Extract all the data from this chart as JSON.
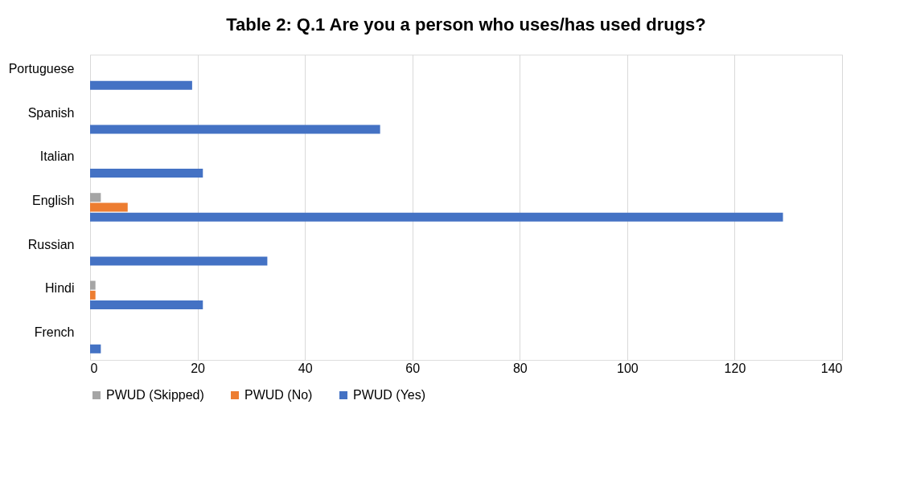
{
  "chart_data": {
    "type": "bar",
    "orientation": "horizontal",
    "title": "Table 2: Q.1 Are you a person who uses/has used drugs?",
    "categories": [
      "Portuguese",
      "Spanish",
      "Italian",
      "English",
      "Russian",
      "Hindi",
      "French"
    ],
    "series": [
      {
        "name": "PWUD (Skipped)",
        "color": "#a5a5a5",
        "values": [
          null,
          null,
          null,
          2,
          null,
          1,
          null
        ]
      },
      {
        "name": "PWUD (No)",
        "color": "#ed7d31",
        "values": [
          null,
          null,
          null,
          7,
          null,
          1,
          null
        ]
      },
      {
        "name": "PWUD (Yes)",
        "color": "#4472c4",
        "values": [
          19,
          54,
          21,
          129,
          33,
          21,
          2
        ]
      }
    ],
    "xlim": [
      0,
      140
    ],
    "xticks": [
      0,
      20,
      40,
      60,
      80,
      100,
      120,
      140
    ],
    "grid": "x",
    "legend": "bottom"
  }
}
